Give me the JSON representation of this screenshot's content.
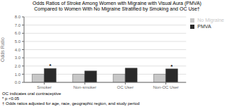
{
  "chart_data": {
    "type": "bar",
    "title": "Odds Ratios of Stroke Among Women with Migraine with Visual Aura (PMVA)",
    "subtitle": "Compared to Women With No Migraine Stratified by Smoking and OC Use†",
    "ylabel": "Odds Ratio",
    "categories": [
      "Smoker",
      "Non-smoker",
      "OC User",
      "Non-OC User"
    ],
    "series": [
      {
        "name": "No Migraine",
        "color": "#c8c8c8",
        "values": [
          1.0,
          1.0,
          1.0,
          1.0
        ]
      },
      {
        "name": "PMVA",
        "color": "#2a2a2a",
        "values": [
          1.7,
          1.4,
          1.75,
          1.65
        ]
      }
    ],
    "ylim": [
      0.0,
      8.0
    ],
    "yticks": [
      {
        "value": 0,
        "label": "0.0"
      },
      {
        "value": 1,
        "label": "1.0"
      },
      {
        "value": 2,
        "label": "2.0"
      },
      {
        "value": 3,
        "label": "3.0"
      },
      {
        "value": 4,
        "label": "4.0"
      },
      {
        "value": 5,
        "label": "5.0"
      },
      {
        "value": 6,
        "label": "6.0"
      },
      {
        "value": 7,
        "label": "7.0"
      },
      {
        "value": 8,
        "label": "8.0"
      }
    ],
    "grid": true,
    "legend": "right",
    "annotations": [
      {
        "text": "*",
        "category": "Smoker",
        "series": "PMVA"
      },
      {
        "text": "*",
        "category": "Non-OC User",
        "series": "PMVA"
      }
    ],
    "footnotes": [
      "OC indicates oral contraceptive",
      "* p <0.05",
      "† Odds ratios adjusted for age, race, geographic region, and study period"
    ]
  }
}
